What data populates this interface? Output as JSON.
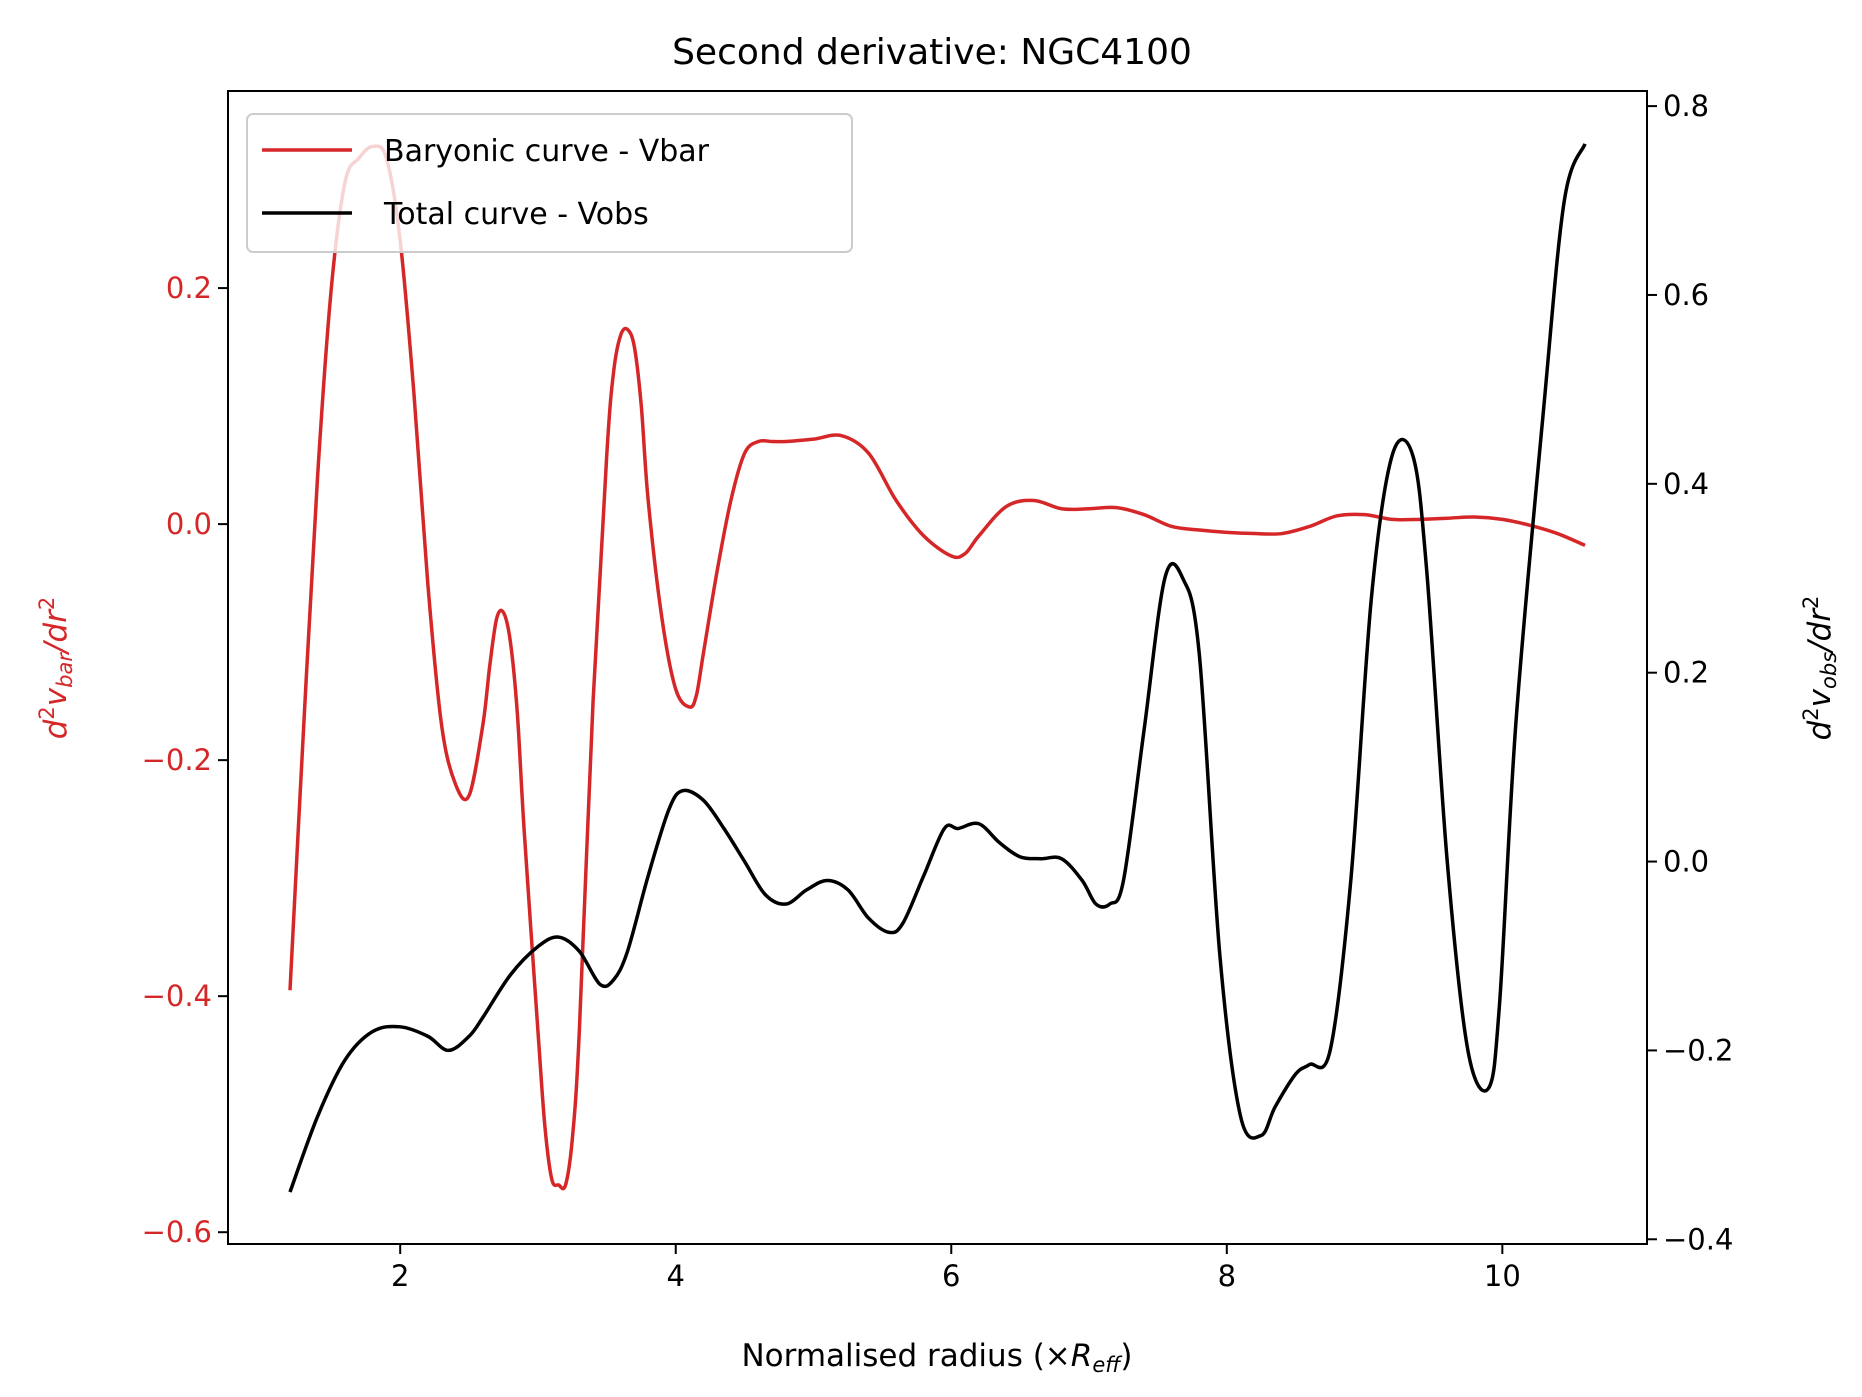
{
  "chart_data": {
    "type": "line",
    "title": "Second derivative: NGC4100",
    "xlabel": "Normalised radius (×R_eff)",
    "ylabel_left": "d²v_bar/dr²",
    "ylabel_right": "d²v_obs/dr²",
    "xlim": [
      0.75,
      11.05
    ],
    "ylim_left": [
      -0.61,
      0.367
    ],
    "ylim_right": [
      -0.405,
      0.816
    ],
    "x_ticks": [
      "2",
      "4",
      "6",
      "8",
      "10"
    ],
    "y_left_ticks": [
      "0.2",
      "0.0",
      "−0.2",
      "−0.4",
      "−0.6"
    ],
    "y_right_ticks": [
      "0.8",
      "0.6",
      "0.4",
      "0.2",
      "0.0",
      "−0.2",
      "−0.4"
    ],
    "legend_position": "top-left",
    "colors": {
      "bar": "#d62728",
      "obs": "#000000"
    },
    "series": [
      {
        "name": "Baryonic curve - Vbar",
        "axis": "left",
        "x": [
          1.2,
          1.3,
          1.4,
          1.5,
          1.6,
          1.7,
          1.8,
          1.9,
          2.0,
          2.1,
          2.2,
          2.3,
          2.4,
          2.5,
          2.6,
          2.65,
          2.7,
          2.75,
          2.8,
          2.85,
          2.9,
          3.0,
          3.05,
          3.1,
          3.15,
          3.2,
          3.25,
          3.3,
          3.4,
          3.5,
          3.55,
          3.6,
          3.65,
          3.7,
          3.75,
          3.8,
          3.9,
          4.0,
          4.1,
          4.15,
          4.2,
          4.3,
          4.4,
          4.5,
          4.6,
          4.7,
          4.8,
          5.0,
          5.2,
          5.4,
          5.6,
          5.8,
          6.0,
          6.1,
          6.2,
          6.4,
          6.6,
          6.8,
          7.0,
          7.2,
          7.4,
          7.6,
          7.8,
          8.0,
          8.2,
          8.4,
          8.6,
          8.8,
          9.0,
          9.2,
          9.4,
          9.6,
          9.8,
          10.0,
          10.2,
          10.4,
          10.6
        ],
        "y": [
          -0.395,
          -0.17,
          0.04,
          0.2,
          0.29,
          0.31,
          0.32,
          0.31,
          0.24,
          0.11,
          -0.05,
          -0.17,
          -0.22,
          -0.23,
          -0.17,
          -0.12,
          -0.08,
          -0.075,
          -0.1,
          -0.16,
          -0.26,
          -0.43,
          -0.51,
          -0.555,
          -0.56,
          -0.56,
          -0.52,
          -0.43,
          -0.15,
          0.06,
          0.13,
          0.16,
          0.165,
          0.15,
          0.1,
          0.02,
          -0.08,
          -0.14,
          -0.155,
          -0.145,
          -0.11,
          -0.04,
          0.02,
          0.06,
          0.07,
          0.07,
          0.07,
          0.072,
          0.075,
          0.06,
          0.02,
          -0.01,
          -0.027,
          -0.025,
          -0.01,
          0.015,
          0.02,
          0.013,
          0.013,
          0.014,
          0.008,
          -0.002,
          -0.005,
          -0.007,
          -0.008,
          -0.008,
          -0.002,
          0.007,
          0.008,
          0.004,
          0.004,
          0.005,
          0.006,
          0.004,
          -0.001,
          -0.008,
          -0.018
        ]
      },
      {
        "name": "Total curve - Vobs",
        "axis": "right",
        "x": [
          1.2,
          1.4,
          1.6,
          1.8,
          2.0,
          2.2,
          2.35,
          2.5,
          2.6,
          2.8,
          3.0,
          3.15,
          3.3,
          3.45,
          3.55,
          3.65,
          3.8,
          3.95,
          4.05,
          4.2,
          4.35,
          4.5,
          4.65,
          4.8,
          4.95,
          5.1,
          5.25,
          5.4,
          5.55,
          5.65,
          5.8,
          5.95,
          6.05,
          6.2,
          6.35,
          6.5,
          6.65,
          6.8,
          6.95,
          7.05,
          7.15,
          7.25,
          7.4,
          7.55,
          7.68,
          7.8,
          7.95,
          8.1,
          8.25,
          8.35,
          8.5,
          8.6,
          8.75,
          8.9,
          9.05,
          9.2,
          9.35,
          9.45,
          9.6,
          9.75,
          9.9,
          9.98,
          10.1,
          10.3,
          10.45,
          10.6
        ],
        "y": [
          -0.35,
          -0.27,
          -0.21,
          -0.18,
          -0.175,
          -0.185,
          -0.2,
          -0.185,
          -0.165,
          -0.12,
          -0.09,
          -0.08,
          -0.095,
          -0.13,
          -0.125,
          -0.095,
          -0.015,
          0.055,
          0.075,
          0.065,
          0.035,
          0.0,
          -0.035,
          -0.045,
          -0.03,
          -0.02,
          -0.03,
          -0.06,
          -0.075,
          -0.065,
          -0.015,
          0.035,
          0.035,
          0.04,
          0.02,
          0.005,
          0.003,
          0.003,
          -0.02,
          -0.045,
          -0.045,
          -0.02,
          0.14,
          0.3,
          0.3,
          0.22,
          -0.1,
          -0.27,
          -0.29,
          -0.26,
          -0.225,
          -0.215,
          -0.2,
          -0.02,
          0.28,
          0.43,
          0.43,
          0.31,
          0.0,
          -0.2,
          -0.24,
          -0.15,
          0.15,
          0.48,
          0.7,
          0.76
        ]
      }
    ]
  }
}
